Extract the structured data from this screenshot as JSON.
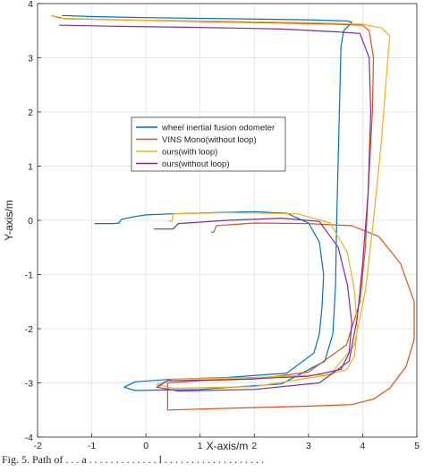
{
  "chart_data": {
    "type": "line",
    "title": "",
    "xlabel": "X-axis/m",
    "ylabel": "Y-axis/m",
    "xlim": [
      -2,
      5
    ],
    "ylim": [
      -4,
      4
    ],
    "xticks": [
      -2,
      -1,
      0,
      1,
      2,
      3,
      4,
      5
    ],
    "yticks": [
      -4,
      -3,
      -2,
      -1,
      0,
      1,
      2,
      3,
      4
    ],
    "grid": true,
    "legend_position": "upper-left-center",
    "series": [
      {
        "name": "wheel inertial fusion odometer",
        "color": "#0072BD",
        "x": [
          -0.95,
          -0.6,
          -0.5,
          -0.45,
          -0.2,
          0.0,
          0.5,
          1.2,
          2.0,
          2.6,
          3.0,
          3.2,
          3.28,
          3.25,
          3.2,
          3.1,
          2.6,
          1.5,
          0.5,
          -0.2,
          -0.4,
          -0.2,
          1.0,
          2.5,
          3.3,
          3.45,
          3.5,
          3.52,
          3.55,
          3.58,
          3.6,
          3.65,
          3.75,
          3.8,
          3.7,
          3.0,
          1.5,
          0.0,
          -1.0,
          -1.55
        ],
        "y": [
          -0.06,
          -0.06,
          -0.05,
          0.02,
          0.07,
          0.1,
          0.12,
          0.14,
          0.16,
          0.13,
          -0.05,
          -0.4,
          -1.0,
          -1.6,
          -2.1,
          -2.45,
          -2.82,
          -2.9,
          -2.93,
          -2.98,
          -3.08,
          -3.14,
          -3.12,
          -3.02,
          -2.6,
          -2.1,
          -1.2,
          0.0,
          1.2,
          2.4,
          3.2,
          3.5,
          3.6,
          3.66,
          3.68,
          3.7,
          3.72,
          3.74,
          3.76,
          3.78
        ]
      },
      {
        "name": "VINS Mono(without loop)",
        "color": "#D95319",
        "x": [
          1.2,
          1.25,
          1.3,
          2.0,
          3.0,
          3.8,
          4.3,
          4.7,
          4.95,
          4.95,
          4.8,
          4.5,
          4.2,
          3.8,
          3.0,
          1.5,
          0.4,
          0.4,
          1.0,
          2.0,
          3.0,
          3.7,
          3.95,
          4.05,
          4.1,
          4.18,
          4.2,
          4.12,
          4.0,
          3.5,
          2.5,
          1.0,
          -0.5,
          -1.5,
          -1.75
        ],
        "y": [
          -0.22,
          -0.22,
          -0.1,
          -0.05,
          -0.06,
          -0.1,
          -0.3,
          -0.8,
          -1.5,
          -2.2,
          -2.7,
          -3.1,
          -3.3,
          -3.4,
          -3.43,
          -3.47,
          -3.5,
          -3.0,
          -2.96,
          -2.93,
          -2.8,
          -2.3,
          -1.5,
          -0.5,
          0.5,
          2.0,
          3.0,
          3.5,
          3.6,
          3.62,
          3.64,
          3.67,
          3.7,
          3.72,
          3.78
        ]
      },
      {
        "name": "ours(with loop)",
        "color": "#EDB120",
        "x": [
          0.42,
          0.48,
          0.5,
          1.5,
          2.8,
          3.4,
          3.72,
          3.85,
          3.9,
          3.85,
          3.7,
          3.3,
          2.0,
          0.5,
          0.2,
          0.5,
          2.0,
          3.4,
          3.85,
          4.05,
          4.2,
          4.35,
          4.45,
          4.5,
          4.35,
          4.0,
          3.0,
          1.0,
          -0.5,
          -1.6,
          -1.75
        ],
        "y": [
          -0.02,
          -0.02,
          0.12,
          0.14,
          0.12,
          -0.05,
          -0.6,
          -1.3,
          -2.0,
          -2.5,
          -2.76,
          -2.85,
          -2.9,
          -2.93,
          -3.03,
          -3.1,
          -3.07,
          -2.85,
          -2.3,
          -1.3,
          0.0,
          1.5,
          2.8,
          3.4,
          3.55,
          3.62,
          3.65,
          3.68,
          3.7,
          3.73,
          3.78
        ]
      },
      {
        "name": "ours(without loop)",
        "color": "#7E2F8E",
        "x": [
          0.15,
          0.5,
          0.6,
          1.5,
          2.5,
          3.2,
          3.55,
          3.72,
          3.8,
          3.75,
          3.6,
          3.0,
          1.8,
          0.4,
          0.2,
          0.6,
          2.0,
          3.2,
          3.75,
          3.9,
          4.0,
          4.1,
          4.15,
          4.12,
          3.95,
          3.5,
          2.5,
          1.0,
          -0.5,
          -1.5,
          -1.6
        ],
        "y": [
          -0.16,
          -0.16,
          -0.06,
          0.0,
          0.04,
          -0.02,
          -0.5,
          -1.2,
          -1.9,
          -2.45,
          -2.75,
          -2.88,
          -2.93,
          -2.96,
          -3.08,
          -3.15,
          -3.12,
          -3.0,
          -2.6,
          -1.8,
          -0.8,
          0.5,
          2.0,
          3.0,
          3.45,
          3.48,
          3.53,
          3.56,
          3.58,
          3.6,
          3.6
        ]
      }
    ]
  },
  "caption": "Fig. 5. Path of . . . a . . . . . . . . . . . . . l . . . . . . . . . . . . . . . . . . ."
}
